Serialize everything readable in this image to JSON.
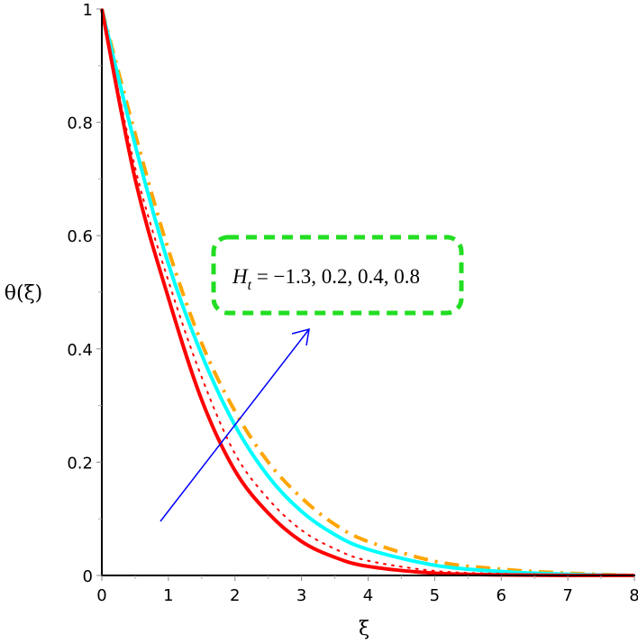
{
  "chart_data": {
    "type": "line",
    "title": "",
    "xlabel": "ξ",
    "ylabel": "θ(ξ)",
    "xlim": [
      0,
      8
    ],
    "ylim": [
      0,
      1
    ],
    "grid": false,
    "legend": null,
    "x_ticks": [
      0,
      1,
      2,
      3,
      4,
      5,
      6,
      7,
      8
    ],
    "x_tick_labels": [
      "0",
      "1",
      "2",
      "3",
      "4",
      "5",
      "6",
      "7",
      "8"
    ],
    "y_ticks": [
      0,
      0.2,
      0.4,
      0.6,
      0.8,
      1
    ],
    "y_tick_labels": [
      "0",
      "0.2",
      "0.4",
      "0.6",
      "0.8",
      "1"
    ],
    "x": [
      0,
      0.5,
      1,
      1.5,
      2,
      2.5,
      3,
      3.5,
      4,
      5,
      6,
      7,
      8
    ],
    "series": [
      {
        "name": "H_t = -1.3",
        "color": "#FF0000",
        "style": "solid",
        "width": 4,
        "values": [
          1,
          0.7,
          0.49,
          0.31,
          0.185,
          0.11,
          0.06,
          0.032,
          0.016,
          0.004,
          0.001,
          0,
          0
        ]
      },
      {
        "name": "H_t = 0.2",
        "color": "#FF0000",
        "style": "dotted",
        "width": 2,
        "values": [
          1,
          0.72,
          0.52,
          0.35,
          0.215,
          0.135,
          0.08,
          0.047,
          0.026,
          0.008,
          0.003,
          0.001,
          0
        ]
      },
      {
        "name": "H_t = 0.4",
        "color": "#00FFFF",
        "style": "solid",
        "width": 4,
        "values": [
          1,
          0.76,
          0.55,
          0.39,
          0.265,
          0.175,
          0.113,
          0.072,
          0.046,
          0.018,
          0.007,
          0.002,
          0
        ]
      },
      {
        "name": "H_t = 0.8",
        "color": "#FFA500",
        "style": "dashdot",
        "width": 4,
        "values": [
          1,
          0.78,
          0.575,
          0.41,
          0.29,
          0.2,
          0.137,
          0.09,
          0.06,
          0.025,
          0.011,
          0.004,
          0
        ]
      }
    ],
    "annotations": [
      {
        "type": "text-box",
        "text_main": "H",
        "text_sub": "t",
        "text_rest": " = −1.3, 0.2, 0.4, 0.8",
        "border_color": "#22DD22",
        "border_style": "dashed"
      },
      {
        "type": "arrow",
        "color": "#0000FF",
        "from": [
          0.9,
          0.095
        ],
        "to": [
          3.1,
          0.435
        ]
      }
    ]
  }
}
